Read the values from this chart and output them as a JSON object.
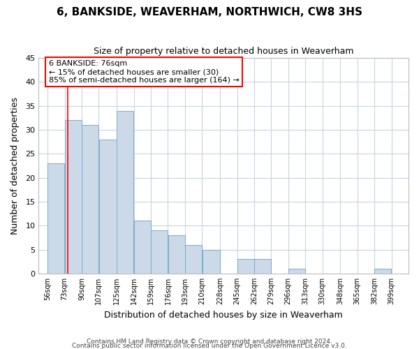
{
  "title": "6, BANKSIDE, WEAVERHAM, NORTHWICH, CW8 3HS",
  "subtitle": "Size of property relative to detached houses in Weaverham",
  "xlabel": "Distribution of detached houses by size in Weaverham",
  "ylabel": "Number of detached properties",
  "footnote1": "Contains HM Land Registry data © Crown copyright and database right 2024.",
  "footnote2": "Contains public sector information licensed under the Open Government Licence v3.0.",
  "annotation_title": "6 BANKSIDE: 76sqm",
  "annotation_line1": "← 15% of detached houses are smaller (30)",
  "annotation_line2": "85% of semi-detached houses are larger (164) →",
  "bar_left_edges": [
    56,
    73,
    90,
    107,
    125,
    142,
    159,
    176,
    193,
    210,
    228,
    245,
    262,
    279,
    296,
    313,
    330,
    348,
    365,
    382
  ],
  "bar_widths": [
    17,
    17,
    17,
    18,
    17,
    17,
    17,
    17,
    17,
    18,
    17,
    17,
    17,
    17,
    17,
    17,
    17,
    17,
    17,
    17
  ],
  "bar_heights": [
    23,
    32,
    31,
    28,
    34,
    11,
    9,
    8,
    6,
    5,
    0,
    3,
    3,
    0,
    1,
    0,
    0,
    0,
    0,
    1
  ],
  "bar_color": "#ccd9e8",
  "bar_edgecolor": "#7aadcc",
  "redline_x": 76,
  "ylim": [
    0,
    45
  ],
  "yticks": [
    0,
    5,
    10,
    15,
    20,
    25,
    30,
    35,
    40,
    45
  ],
  "xlim": [
    47,
    416
  ],
  "xtick_labels": [
    "56sqm",
    "73sqm",
    "90sqm",
    "107sqm",
    "125sqm",
    "142sqm",
    "159sqm",
    "176sqm",
    "193sqm",
    "210sqm",
    "228sqm",
    "245sqm",
    "262sqm",
    "279sqm",
    "296sqm",
    "313sqm",
    "330sqm",
    "348sqm",
    "365sqm",
    "382sqm",
    "399sqm"
  ],
  "xtick_positions": [
    56,
    73,
    90,
    107,
    125,
    142,
    159,
    176,
    193,
    210,
    228,
    245,
    262,
    279,
    296,
    313,
    330,
    348,
    365,
    382,
    399
  ],
  "background_color": "#ffffff",
  "grid_color": "#c8d4e0",
  "title_fontsize": 11,
  "subtitle_fontsize": 9,
  "axis_label_fontsize": 9,
  "tick_fontsize": 7,
  "footnote_fontsize": 6.5,
  "annotation_fontsize": 8
}
